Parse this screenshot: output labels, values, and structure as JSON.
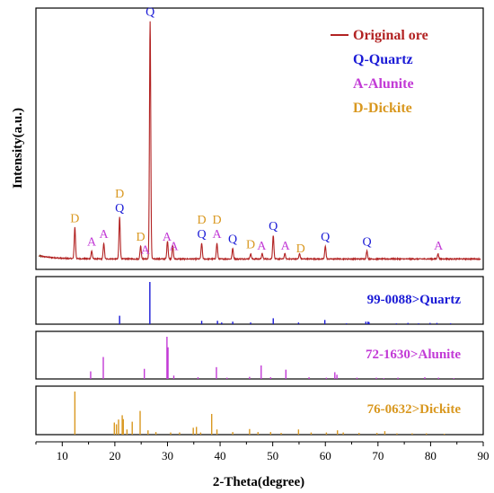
{
  "chart_data": {
    "type": "line",
    "xlabel": "2-Theta(degree)",
    "ylabel": "Intensity(a.u.)",
    "xlim": [
      5,
      90
    ],
    "xticks": [
      10,
      20,
      30,
      40,
      50,
      60,
      70,
      80,
      90
    ],
    "colors": {
      "ore": "#b22222",
      "quartz": "#1a1ad6",
      "alunite": "#c23ad6",
      "dickite": "#d99820",
      "noise": "#3a8a3a"
    },
    "legend": {
      "placement": "top-right",
      "entries": [
        {
          "text": "Original ore",
          "key": "ore",
          "line": true
        },
        {
          "text": "Q-Quartz",
          "key": "quartz"
        },
        {
          "text": "A-Alunite",
          "key": "alunite"
        },
        {
          "text": "D-Dickite",
          "key": "dickite"
        }
      ]
    },
    "pattern": {
      "name": "Original ore",
      "baseline": 0.04,
      "peaks": [
        {
          "x": 12.4,
          "h": 0.12
        },
        {
          "x": 15.6,
          "h": 0.03
        },
        {
          "x": 17.9,
          "h": 0.06
        },
        {
          "x": 20.9,
          "h": 0.16
        },
        {
          "x": 24.9,
          "h": 0.05
        },
        {
          "x": 26.7,
          "h": 0.91
        },
        {
          "x": 30.0,
          "h": 0.07
        },
        {
          "x": 31.0,
          "h": 0.05
        },
        {
          "x": 36.5,
          "h": 0.06
        },
        {
          "x": 39.4,
          "h": 0.06
        },
        {
          "x": 42.4,
          "h": 0.04
        },
        {
          "x": 45.8,
          "h": 0.02
        },
        {
          "x": 48.0,
          "h": 0.02
        },
        {
          "x": 50.1,
          "h": 0.09
        },
        {
          "x": 52.3,
          "h": 0.02
        },
        {
          "x": 55.1,
          "h": 0.02
        },
        {
          "x": 60.0,
          "h": 0.05
        },
        {
          "x": 67.9,
          "h": 0.03
        },
        {
          "x": 81.4,
          "h": 0.02
        }
      ]
    },
    "annotations": [
      {
        "x": 12.4,
        "labels": [
          {
            "t": "D",
            "key": "dickite"
          }
        ]
      },
      {
        "x": 15.6,
        "labels": [
          {
            "t": "A",
            "key": "alunite"
          }
        ]
      },
      {
        "x": 17.9,
        "labels": [
          {
            "t": "A",
            "key": "alunite"
          }
        ]
      },
      {
        "x": 20.9,
        "labels": [
          {
            "t": "Q",
            "key": "quartz"
          },
          {
            "t": "D",
            "key": "dickite"
          }
        ]
      },
      {
        "x": 24.9,
        "labels": [
          {
            "t": "D",
            "key": "dickite"
          }
        ]
      },
      {
        "x": 25.8,
        "labels": [
          {
            "t": "A",
            "key": "alunite"
          }
        ]
      },
      {
        "x": 26.7,
        "labels": [
          {
            "t": "Q",
            "key": "quartz"
          }
        ]
      },
      {
        "x": 29.9,
        "labels": [
          {
            "t": "A",
            "key": "alunite"
          }
        ]
      },
      {
        "x": 31.2,
        "labels": [
          {
            "t": "A",
            "key": "alunite"
          }
        ]
      },
      {
        "x": 36.5,
        "labels": [
          {
            "t": "Q",
            "key": "quartz"
          },
          {
            "t": "D",
            "key": "dickite"
          }
        ]
      },
      {
        "x": 39.4,
        "labels": [
          {
            "t": "A",
            "key": "alunite"
          },
          {
            "t": "D",
            "key": "dickite"
          }
        ]
      },
      {
        "x": 42.4,
        "labels": [
          {
            "t": "Q",
            "key": "quartz"
          }
        ]
      },
      {
        "x": 45.8,
        "labels": [
          {
            "t": "D",
            "key": "dickite"
          }
        ]
      },
      {
        "x": 47.9,
        "labels": [
          {
            "t": "A",
            "key": "alunite"
          }
        ]
      },
      {
        "x": 50.1,
        "labels": [
          {
            "t": "Q",
            "key": "quartz"
          }
        ]
      },
      {
        "x": 52.4,
        "labels": [
          {
            "t": "A",
            "key": "alunite"
          }
        ]
      },
      {
        "x": 55.3,
        "labels": [
          {
            "t": "D",
            "key": "dickite"
          }
        ]
      },
      {
        "x": 60.0,
        "labels": [
          {
            "t": "Q",
            "key": "quartz"
          }
        ]
      },
      {
        "x": 67.9,
        "labels": [
          {
            "t": "Q",
            "key": "quartz"
          }
        ]
      },
      {
        "x": 81.5,
        "labels": [
          {
            "t": "A",
            "key": "alunite"
          }
        ]
      }
    ],
    "references": [
      {
        "label": "99-0088>Quartz",
        "key": "quartz",
        "lines": [
          {
            "x": 20.9,
            "h": 0.2
          },
          {
            "x": 26.65,
            "h": 1.0
          },
          {
            "x": 36.5,
            "h": 0.08
          },
          {
            "x": 39.5,
            "h": 0.08
          },
          {
            "x": 40.3,
            "h": 0.04
          },
          {
            "x": 42.4,
            "h": 0.06
          },
          {
            "x": 45.8,
            "h": 0.04
          },
          {
            "x": 50.1,
            "h": 0.14
          },
          {
            "x": 54.9,
            "h": 0.04
          },
          {
            "x": 59.9,
            "h": 0.1
          },
          {
            "x": 64.0,
            "h": 0.02
          },
          {
            "x": 67.7,
            "h": 0.06
          },
          {
            "x": 68.1,
            "h": 0.06
          },
          {
            "x": 68.3,
            "h": 0.05
          },
          {
            "x": 73.5,
            "h": 0.02
          },
          {
            "x": 75.7,
            "h": 0.03
          },
          {
            "x": 77.7,
            "h": 0.02
          },
          {
            "x": 79.9,
            "h": 0.03
          },
          {
            "x": 81.2,
            "h": 0.03
          },
          {
            "x": 83.8,
            "h": 0.02
          }
        ]
      },
      {
        "label": "72-1630>Alunite",
        "key": "alunite",
        "lines": [
          {
            "x": 15.4,
            "h": 0.18
          },
          {
            "x": 17.8,
            "h": 0.52
          },
          {
            "x": 25.6,
            "h": 0.24
          },
          {
            "x": 29.9,
            "h": 1.0
          },
          {
            "x": 30.1,
            "h": 0.75
          },
          {
            "x": 31.2,
            "h": 0.08
          },
          {
            "x": 35.8,
            "h": 0.04
          },
          {
            "x": 39.3,
            "h": 0.28
          },
          {
            "x": 41.3,
            "h": 0.03
          },
          {
            "x": 45.6,
            "h": 0.05
          },
          {
            "x": 47.8,
            "h": 0.32
          },
          {
            "x": 49.6,
            "h": 0.04
          },
          {
            "x": 52.5,
            "h": 0.22
          },
          {
            "x": 56.9,
            "h": 0.04
          },
          {
            "x": 60.2,
            "h": 0.03
          },
          {
            "x": 61.8,
            "h": 0.16
          },
          {
            "x": 62.2,
            "h": 0.1
          },
          {
            "x": 66.0,
            "h": 0.03
          },
          {
            "x": 69.7,
            "h": 0.03
          },
          {
            "x": 71.1,
            "h": 0.02
          },
          {
            "x": 73.8,
            "h": 0.03
          },
          {
            "x": 78.9,
            "h": 0.04
          },
          {
            "x": 81.5,
            "h": 0.03
          },
          {
            "x": 84.4,
            "h": 0.02
          }
        ]
      },
      {
        "label": "76-0632>Dickite",
        "key": "dickite",
        "lines": [
          {
            "x": 12.4,
            "h": 1.0
          },
          {
            "x": 19.9,
            "h": 0.28
          },
          {
            "x": 20.3,
            "h": 0.24
          },
          {
            "x": 20.7,
            "h": 0.35
          },
          {
            "x": 21.4,
            "h": 0.45
          },
          {
            "x": 21.6,
            "h": 0.36
          },
          {
            "x": 22.3,
            "h": 0.12
          },
          {
            "x": 23.3,
            "h": 0.3
          },
          {
            "x": 24.8,
            "h": 0.55
          },
          {
            "x": 26.3,
            "h": 0.1
          },
          {
            "x": 27.8,
            "h": 0.06
          },
          {
            "x": 30.6,
            "h": 0.05
          },
          {
            "x": 32.3,
            "h": 0.05
          },
          {
            "x": 34.9,
            "h": 0.16
          },
          {
            "x": 35.5,
            "h": 0.18
          },
          {
            "x": 36.3,
            "h": 0.05
          },
          {
            "x": 38.4,
            "h": 0.48
          },
          {
            "x": 39.4,
            "h": 0.12
          },
          {
            "x": 42.4,
            "h": 0.06
          },
          {
            "x": 45.6,
            "h": 0.13
          },
          {
            "x": 47.2,
            "h": 0.06
          },
          {
            "x": 49.6,
            "h": 0.06
          },
          {
            "x": 51.6,
            "h": 0.04
          },
          {
            "x": 54.9,
            "h": 0.12
          },
          {
            "x": 57.3,
            "h": 0.05
          },
          {
            "x": 60.2,
            "h": 0.05
          },
          {
            "x": 62.3,
            "h": 0.1
          },
          {
            "x": 63.4,
            "h": 0.05
          },
          {
            "x": 66.4,
            "h": 0.04
          },
          {
            "x": 69.8,
            "h": 0.04
          },
          {
            "x": 71.3,
            "h": 0.08
          },
          {
            "x": 73.6,
            "h": 0.03
          },
          {
            "x": 76.5,
            "h": 0.03
          },
          {
            "x": 79.2,
            "h": 0.03
          },
          {
            "x": 82.6,
            "h": 0.02
          }
        ]
      }
    ]
  }
}
